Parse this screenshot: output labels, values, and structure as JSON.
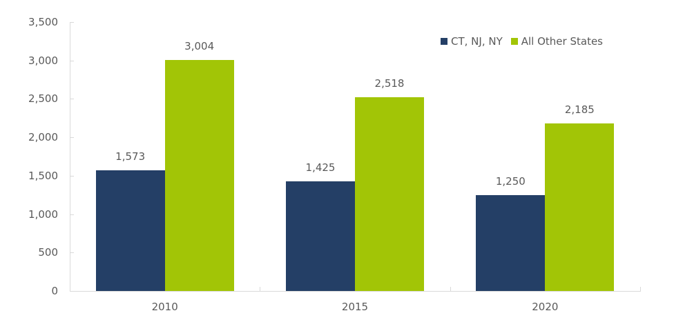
{
  "chart_data": {
    "type": "bar",
    "title": "",
    "xlabel": "",
    "ylabel": "",
    "categories": [
      "2010",
      "2015",
      "2020"
    ],
    "series": [
      {
        "name": "CT, NJ, NY",
        "color": "#243F66",
        "values": [
          1573,
          1425,
          1250
        ],
        "labels": [
          "1,573",
          "1,425",
          "1,250"
        ]
      },
      {
        "name": "All Other States",
        "color": "#A2C506",
        "values": [
          3004,
          2518,
          2185
        ],
        "labels": [
          "3,004",
          "2,518",
          "2,185"
        ]
      }
    ],
    "ylim": [
      0,
      3500
    ],
    "yticks": [
      0,
      500,
      1000,
      1500,
      2000,
      2500,
      3000,
      3500
    ],
    "ytick_labels": [
      "0",
      "500",
      "1,000",
      "1,500",
      "2,000",
      "2,500",
      "3,000",
      "3,500"
    ],
    "grid": false,
    "legend_position": "top-right",
    "data_labels": true
  },
  "legend": {
    "items": [
      {
        "label": "CT, NJ, NY",
        "color": "#243F66"
      },
      {
        "label": "All Other States",
        "color": "#A2C506"
      }
    ]
  }
}
